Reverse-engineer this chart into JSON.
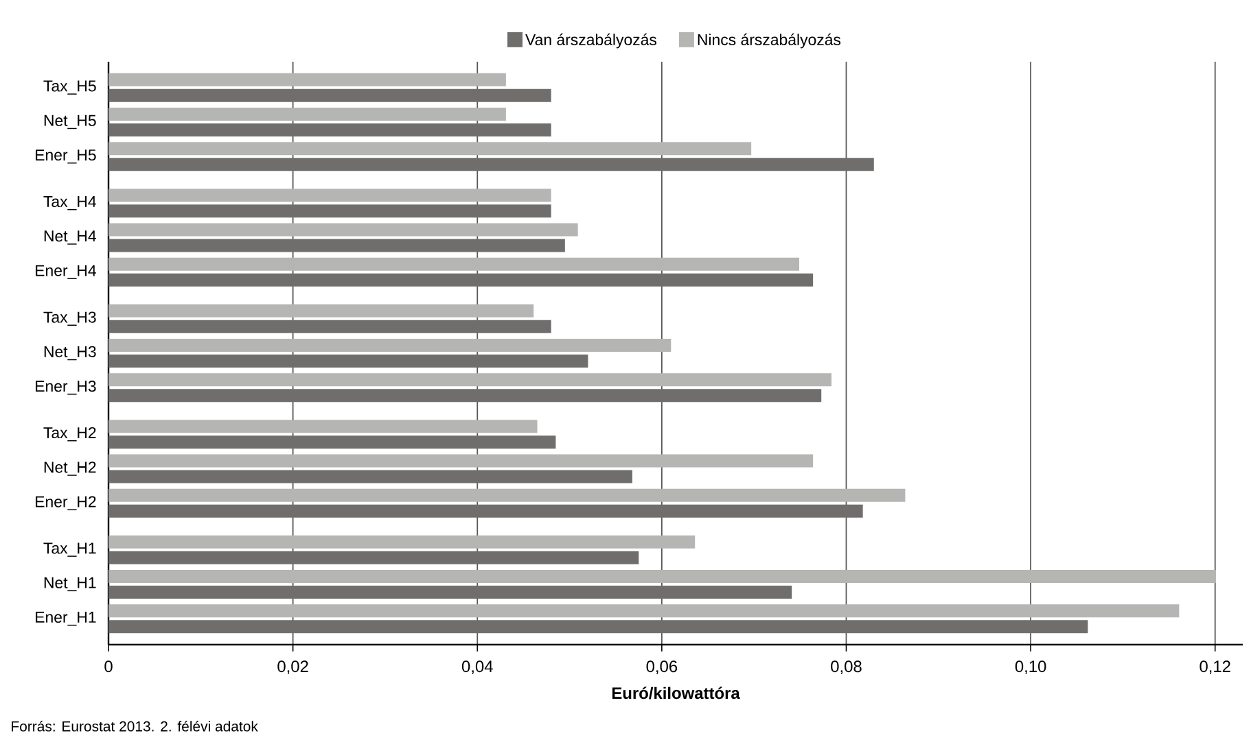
{
  "chart_data": {
    "type": "bar",
    "orientation": "horizontal",
    "categories": [
      "Tax_H5",
      "Net_H5",
      "Ener_H5",
      "Tax_H4",
      "Net_H4",
      "Ener_H4",
      "Tax_H3",
      "Net_H3",
      "Ener_H3",
      "Tax_H2",
      "Net_H2",
      "Ener_H2",
      "Tax_H1",
      "Net_H1",
      "Ener_H1"
    ],
    "series": [
      {
        "name": "Van árszabályozás",
        "color": "#6f6e6c",
        "values": [
          0.048,
          0.048,
          0.083,
          0.048,
          0.0495,
          0.0764,
          0.048,
          0.052,
          0.0773,
          0.0485,
          0.0568,
          0.0818,
          0.0575,
          0.0741,
          0.1062
        ]
      },
      {
        "name": "Nincs árszabályozás",
        "color": "#b5b5b4",
        "values": [
          0.0431,
          0.0431,
          0.0697,
          0.048,
          0.0509,
          0.0749,
          0.0461,
          0.061,
          0.0784,
          0.0465,
          0.0764,
          0.0864,
          0.0636,
          0.1201,
          0.1161
        ]
      }
    ],
    "xlabel": "Euró/kilowattóra",
    "xlim": [
      0,
      0.123
    ],
    "xticks": [
      0,
      {
        "value": 0.02,
        "label": "0,02"
      },
      {
        "value": 0.04,
        "label": "0,04"
      },
      {
        "value": 0.06,
        "label": "0,06"
      },
      {
        "value": 0.08,
        "label": "0,08"
      },
      {
        "value": 0.1,
        "label": "0,10"
      },
      {
        "value": 0.12,
        "label": "0,12"
      }
    ],
    "grid": "x",
    "legend": "top",
    "annotations": [
      "Forrás: Eurostat 2013. 2. félévi adatok"
    ]
  }
}
